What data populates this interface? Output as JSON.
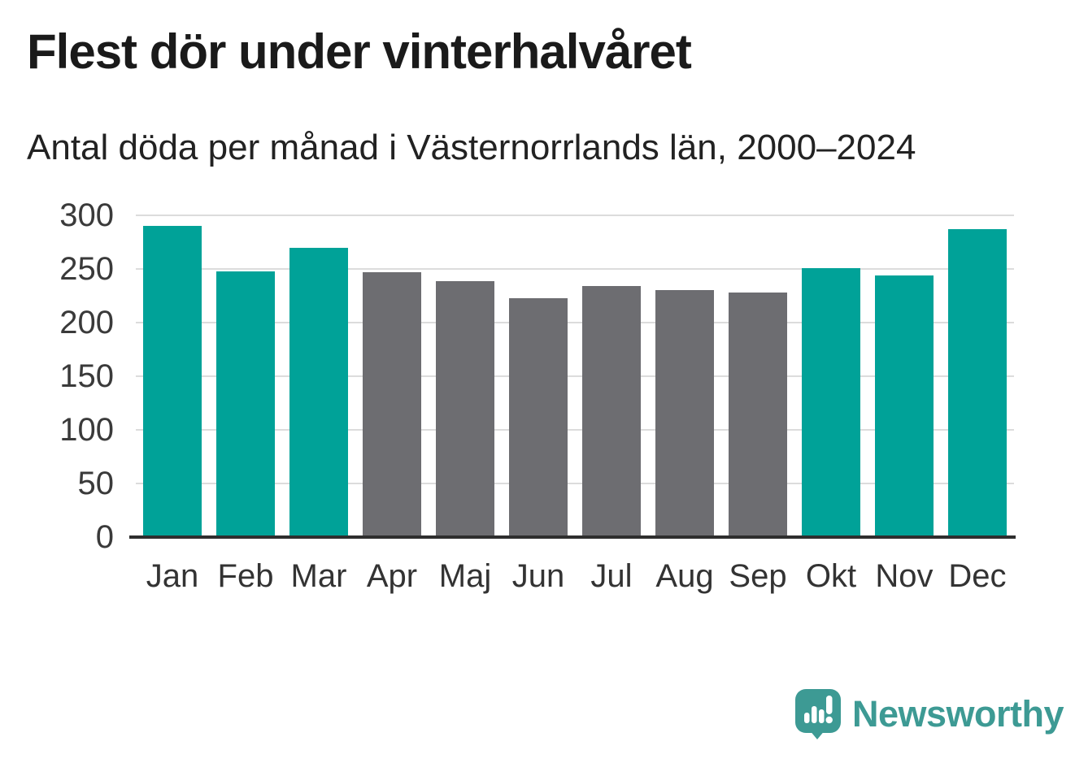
{
  "chart_data": {
    "type": "bar",
    "title": "Flest dör under vinterhalvåret",
    "subtitle": "Antal döda per månad i Västernorrlands län, 2000–2024",
    "categories": [
      "Jan",
      "Feb",
      "Mar",
      "Apr",
      "Maj",
      "Jun",
      "Jul",
      "Aug",
      "Sep",
      "Okt",
      "Nov",
      "Dec"
    ],
    "values": [
      290,
      248,
      270,
      247,
      239,
      223,
      234,
      230,
      228,
      251,
      244,
      287
    ],
    "bar_colors": [
      "winter",
      "winter",
      "winter",
      "summer",
      "summer",
      "summer",
      "summer",
      "summer",
      "summer",
      "winter",
      "winter",
      "winter"
    ],
    "colors": {
      "winter": "#00a298",
      "summer": "#6d6d71",
      "gridline": "#dcdcdc",
      "axis": "#2e2e2e",
      "tick_label": "#3a3a3a"
    },
    "xlabel": "",
    "ylabel": "",
    "ylim": [
      0,
      300
    ],
    "yticks": [
      0,
      50,
      100,
      150,
      200,
      250,
      300
    ],
    "grid": true,
    "legend": "none"
  },
  "branding": {
    "logo_text": "Newsworthy",
    "logo_color": "#3d9a94"
  }
}
